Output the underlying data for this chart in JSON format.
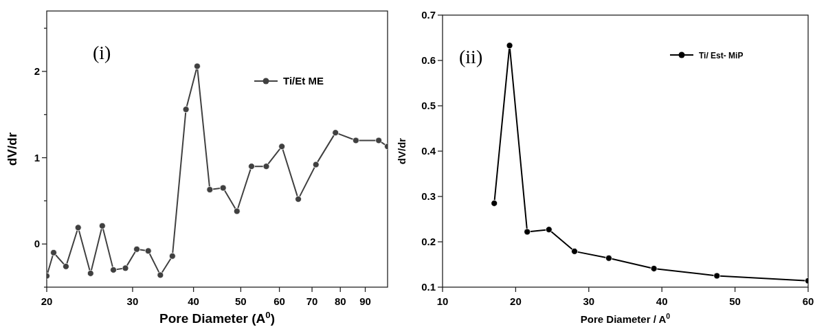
{
  "chart_data": [
    {
      "type": "line",
      "xlabel": "Pore Diameter (A$^{0}$)",
      "ylabel": "dV/dr",
      "annotations": [
        "(i)"
      ],
      "log": "x",
      "legend": "top right",
      "marker": "circle",
      "line_style": "solid",
      "xlim": [
        20,
        100
      ],
      "xticks": [
        20,
        30,
        40,
        50,
        60,
        70,
        80,
        90
      ],
      "ylim": [
        -0.5,
        2.7
      ],
      "yticks": [
        {
          "value": -0.5,
          "label": null
        },
        0,
        {
          "value": 0.5,
          "label": null
        },
        1,
        {
          "value": 1.5,
          "label": null
        },
        2,
        {
          "value": 2.5,
          "label": null
        }
      ],
      "series": [
        {
          "name": "Ti/Et ME",
          "color": "#404040",
          "x": [
            20,
            20.66,
            21.9,
            23.2,
            24.6,
            26.0,
            27.4,
            29.0,
            30.6,
            32.3,
            34.2,
            36.2,
            38.6,
            40.7,
            43.2,
            46.0,
            49.1,
            52.6,
            56.4,
            60.7,
            65.6,
            71.3,
            78.2,
            86.1,
            95.9,
            100
          ],
          "values": [
            -0.37,
            -0.1,
            -0.26,
            0.19,
            -0.34,
            0.21,
            -0.3,
            -0.28,
            -0.06,
            -0.08,
            -0.36,
            -0.14,
            1.56,
            2.06,
            0.63,
            0.65,
            0.38,
            0.9,
            0.9,
            1.13,
            0.52,
            0.92,
            1.29,
            1.2,
            1.2,
            1.13
          ]
        }
      ]
    },
    {
      "type": "line",
      "xlabel": "Pore Diameter / A$^{0}$",
      "ylabel": "dV/dr",
      "annotations": [
        "(ii)"
      ],
      "legend": "top right",
      "marker": "circle",
      "line_style": "solid",
      "xlim": [
        10,
        60
      ],
      "xticks": [
        10,
        20,
        30,
        40,
        50,
        60
      ],
      "ylim": [
        0.1,
        0.7
      ],
      "yticks": [
        0.1,
        0.2,
        0.3,
        0.4,
        0.5,
        0.6,
        0.7
      ],
      "series": [
        {
          "name": "Ti/ Est- MiP",
          "color": "#000000",
          "x": [
            17.07,
            19.17,
            21.58,
            24.55,
            28.05,
            32.74,
            38.91,
            47.52,
            60
          ],
          "values": [
            0.285,
            0.633,
            0.222,
            0.227,
            0.179,
            0.164,
            0.141,
            0.125,
            0.114
          ]
        }
      ]
    }
  ]
}
